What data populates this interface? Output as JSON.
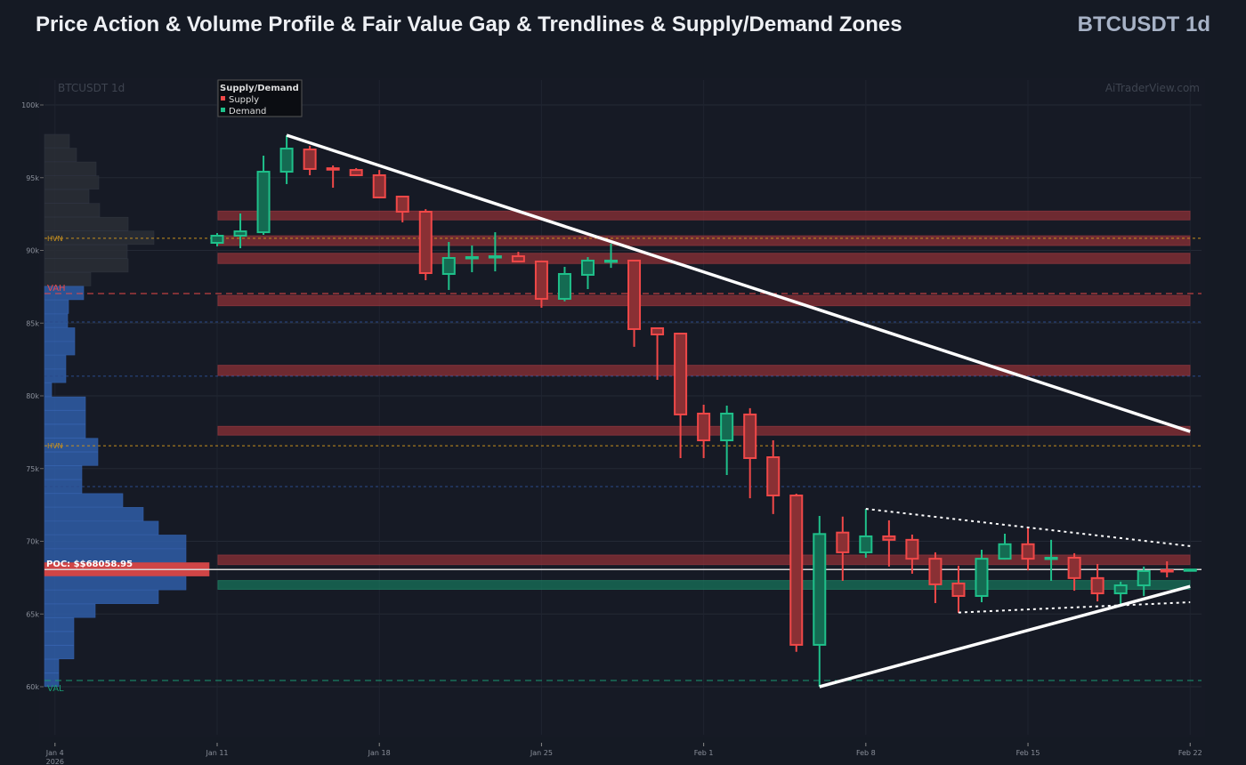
{
  "header": {
    "title": "Price Action & Volume Profile & Fair Value Gap & Trendlines & Supply/Demand Zones",
    "symbol": "BTCUSDT 1d"
  },
  "watermark": {
    "left": "BTCUSDT 1d",
    "right": "AiTraderView.com"
  },
  "colors": {
    "bull": "#1fc08a",
    "bear": "#f04848",
    "supply": "#8c3036",
    "demand": "#17725a",
    "hvn": "#c8901e",
    "vah": "#e84848",
    "val": "#1a9a74",
    "poc": "#d8d8d8",
    "profile": "#2f5ea8",
    "profile_upper": "#2a2e36",
    "value_area_lines": "#2a4a8a"
  },
  "chart_data": {
    "type": "candlestick",
    "title": "BTCUSDT 1d",
    "ylabel": "",
    "xlabel": "",
    "ylim": [
      57000,
      102000
    ],
    "yticks": [
      60000,
      65000,
      70000,
      75000,
      80000,
      85000,
      90000,
      95000,
      100000
    ],
    "ytick_labels": [
      "60k",
      "65k",
      "70k",
      "75k",
      "80k",
      "85k",
      "90k",
      "95k",
      "100k"
    ],
    "xticks": [
      {
        "day": -7,
        "label": "Jan 4",
        "sub": "2026"
      },
      {
        "day": 0,
        "label": "Jan 11"
      },
      {
        "day": 7,
        "label": "Jan 18"
      },
      {
        "day": 14,
        "label": "Jan 25"
      },
      {
        "day": 21,
        "label": "Feb 1"
      },
      {
        "day": 28,
        "label": "Feb 8"
      },
      {
        "day": 35,
        "label": "Feb 15"
      },
      {
        "day": 42,
        "label": "Feb 22"
      }
    ],
    "grid": true,
    "legend": {
      "title": "Supply/Demand",
      "placement": "top-left",
      "items": [
        {
          "label": "Supply",
          "color": "#f04848"
        },
        {
          "label": "Demand",
          "color": "#1fc08a"
        }
      ]
    },
    "candles": [
      {
        "date": "Jan 11",
        "o": 90520,
        "h": 91190,
        "l": 90280,
        "c": 91010
      },
      {
        "date": "Jan 12",
        "o": 91010,
        "h": 92540,
        "l": 90150,
        "c": 91310
      },
      {
        "date": "Jan 13",
        "o": 91250,
        "h": 96510,
        "l": 91070,
        "c": 95410
      },
      {
        "date": "Jan 14",
        "o": 95410,
        "h": 97920,
        "l": 94560,
        "c": 97000
      },
      {
        "date": "Jan 15",
        "o": 96940,
        "h": 97190,
        "l": 95170,
        "c": 95600
      },
      {
        "date": "Jan 16",
        "o": 95650,
        "h": 95840,
        "l": 94310,
        "c": 95550
      },
      {
        "date": "Jan 17",
        "o": 95530,
        "h": 95660,
        "l": 95110,
        "c": 95170
      },
      {
        "date": "Jan 18",
        "o": 95170,
        "h": 95530,
        "l": 93600,
        "c": 93640
      },
      {
        "date": "Jan 19",
        "o": 93700,
        "h": 93700,
        "l": 91930,
        "c": 92660
      },
      {
        "date": "Jan 20",
        "o": 92660,
        "h": 92840,
        "l": 87950,
        "c": 88440
      },
      {
        "date": "Jan 21",
        "o": 88380,
        "h": 90580,
        "l": 87280,
        "c": 89480
      },
      {
        "date": "Jan 22",
        "o": 89480,
        "h": 90340,
        "l": 88500,
        "c": 89540
      },
      {
        "date": "Jan 23",
        "o": 89540,
        "h": 91250,
        "l": 88560,
        "c": 89600
      },
      {
        "date": "Jan 24",
        "o": 89600,
        "h": 89900,
        "l": 89200,
        "c": 89240
      },
      {
        "date": "Jan 25",
        "o": 89240,
        "h": 89300,
        "l": 86060,
        "c": 86670
      },
      {
        "date": "Jan 26",
        "o": 86670,
        "h": 88870,
        "l": 86500,
        "c": 88380
      },
      {
        "date": "Jan 27",
        "o": 88320,
        "h": 89540,
        "l": 87340,
        "c": 89300
      },
      {
        "date": "Jan 28",
        "o": 89240,
        "h": 90460,
        "l": 88800,
        "c": 89300
      },
      {
        "date": "Jan 29",
        "o": 89300,
        "h": 89300,
        "l": 83370,
        "c": 84590
      },
      {
        "date": "Jan 30",
        "o": 84650,
        "h": 84710,
        "l": 81100,
        "c": 84220
      },
      {
        "date": "Jan 31",
        "o": 84280,
        "h": 84280,
        "l": 75720,
        "c": 78720
      },
      {
        "date": "Feb 1",
        "o": 78780,
        "h": 79390,
        "l": 75720,
        "c": 76940
      },
      {
        "date": "Feb 2",
        "o": 76940,
        "h": 79330,
        "l": 74560,
        "c": 78780
      },
      {
        "date": "Feb 3",
        "o": 78720,
        "h": 79150,
        "l": 72960,
        "c": 75720
      },
      {
        "date": "Feb 4",
        "o": 75780,
        "h": 76940,
        "l": 71870,
        "c": 73150
      },
      {
        "date": "Feb 5",
        "o": 73150,
        "h": 73270,
        "l": 62400,
        "c": 62880
      },
      {
        "date": "Feb 6",
        "o": 62880,
        "h": 71740,
        "l": 60000,
        "c": 70500
      },
      {
        "date": "Feb 7",
        "o": 70600,
        "h": 71700,
        "l": 67280,
        "c": 69240
      },
      {
        "date": "Feb 8",
        "o": 69240,
        "h": 72230,
        "l": 68870,
        "c": 70340
      },
      {
        "date": "Feb 9",
        "o": 70340,
        "h": 71440,
        "l": 68260,
        "c": 70100
      },
      {
        "date": "Feb 10",
        "o": 70100,
        "h": 70460,
        "l": 67770,
        "c": 68800
      },
      {
        "date": "Feb 11",
        "o": 68800,
        "h": 69240,
        "l": 65750,
        "c": 67040
      },
      {
        "date": "Feb 12",
        "o": 67100,
        "h": 68320,
        "l": 65080,
        "c": 66240
      },
      {
        "date": "Feb 13",
        "o": 66240,
        "h": 69420,
        "l": 65810,
        "c": 68800
      },
      {
        "date": "Feb 14",
        "o": 68800,
        "h": 70520,
        "l": 68740,
        "c": 69800
      },
      {
        "date": "Feb 15",
        "o": 69800,
        "h": 70950,
        "l": 68000,
        "c": 68800
      },
      {
        "date": "Feb 16",
        "o": 68800,
        "h": 70100,
        "l": 67280,
        "c": 68870
      },
      {
        "date": "Feb 17",
        "o": 68870,
        "h": 69180,
        "l": 66600,
        "c": 67470
      },
      {
        "date": "Feb 18",
        "o": 67470,
        "h": 68440,
        "l": 65870,
        "c": 66420
      },
      {
        "date": "Feb 19",
        "o": 66420,
        "h": 67220,
        "l": 65690,
        "c": 66970
      },
      {
        "date": "Feb 20",
        "o": 66970,
        "h": 68260,
        "l": 66240,
        "c": 67950
      },
      {
        "date": "Feb 21",
        "o": 68010,
        "h": 68620,
        "l": 67520,
        "c": 67950
      },
      {
        "date": "Feb 22",
        "o": 68000,
        "h": 68060,
        "l": 68000,
        "c": 68060
      }
    ],
    "zones": [
      {
        "type": "supply",
        "low": 92100,
        "high": 92700
      },
      {
        "type": "supply",
        "low": 90340,
        "high": 91000
      },
      {
        "type": "supply",
        "low": 89100,
        "high": 89800
      },
      {
        "type": "supply",
        "low": 86200,
        "high": 86900
      },
      {
        "type": "supply",
        "low": 81400,
        "high": 82100
      },
      {
        "type": "supply",
        "low": 77300,
        "high": 77900
      },
      {
        "type": "supply",
        "low": 68400,
        "high": 69050
      },
      {
        "type": "demand",
        "low": 66700,
        "high": 67300
      }
    ],
    "levels": [
      {
        "kind": "hvn",
        "price": 90830,
        "label": "HVN"
      },
      {
        "kind": "hvn",
        "price": 76570,
        "label": "HVN"
      },
      {
        "kind": "vah",
        "price": 87030,
        "label": "VAH"
      },
      {
        "kind": "val",
        "price": 60430,
        "label": "VAL"
      },
      {
        "kind": "va",
        "price": 85080,
        "label": ""
      },
      {
        "kind": "va",
        "price": 81350,
        "label": ""
      },
      {
        "kind": "va",
        "price": 73760,
        "label": ""
      }
    ],
    "poc": {
      "price": 68060,
      "label": "POC: $$68058.95"
    },
    "trendlines": [
      {
        "style": "solid",
        "from": {
          "day": 3,
          "price": 97920
        },
        "to": {
          "day": 42,
          "price": 77550
        }
      },
      {
        "style": "solid",
        "from": {
          "day": 26,
          "price": 60000
        },
        "to": {
          "day": 42,
          "price": 66900
        }
      },
      {
        "style": "dotted",
        "from": {
          "day": 28,
          "price": 72230
        },
        "to": {
          "day": 42,
          "price": 69670
        }
      },
      {
        "style": "dotted",
        "from": {
          "day": 32,
          "price": 65100
        },
        "to": {
          "day": 42,
          "price": 65810
        }
      }
    ],
    "volume_profile": {
      "top_price": 97980,
      "bin_size": 950,
      "volumes": [
        28,
        36,
        58,
        61,
        50,
        62,
        94,
        123,
        93,
        94,
        52,
        44,
        27,
        26,
        34,
        34,
        24,
        24,
        8,
        46,
        46,
        46,
        60,
        60,
        42,
        42,
        88,
        111,
        128,
        159,
        159,
        185,
        159,
        128,
        57,
        33,
        33,
        33,
        16,
        16
      ]
    }
  }
}
